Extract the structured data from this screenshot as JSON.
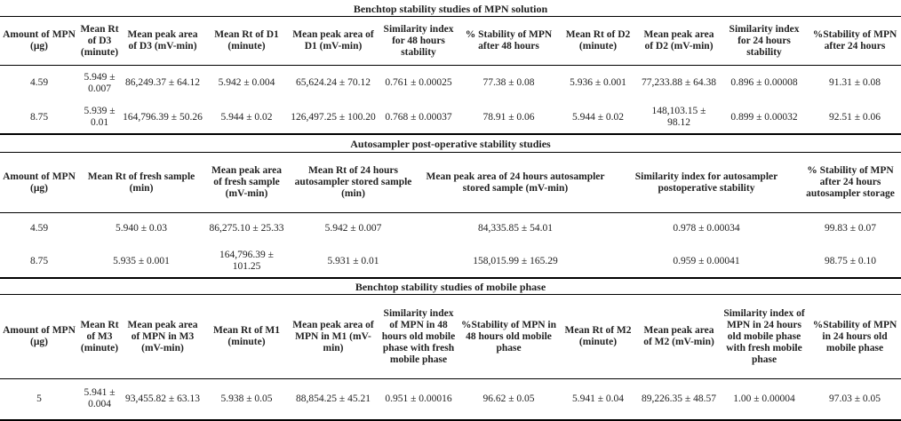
{
  "tables": [
    {
      "title": "Benchtop stability studies of MPN solution",
      "headers": [
        "Amount of MPN (μg)",
        "Mean Rt of D3 (minute)",
        "Mean peak area of D3 (mV-min)",
        "Mean Rt of D1 (minute)",
        "Mean peak area of D1 (mV-min)",
        "Similarity index for 48 hours stability",
        "% Stability of MPN after 48 hours",
        "Mean Rt of D2 (minute)",
        "Mean peak area of D2 (mV-min)",
        "Similarity index for 24 hours stability",
        "%Stability of MPN after 24 hours"
      ],
      "rows": [
        [
          "4.59",
          "5.949 ± 0.007",
          "86,249.37 ± 64.12",
          "5.942 ± 0.004",
          "65,624.24 ± 70.12",
          "0.761 ± 0.00025",
          "77.38 ± 0.08",
          "5.936 ± 0.001",
          "77,233.88 ± 64.38",
          "0.896 ± 0.00008",
          "91.31 ± 0.08"
        ],
        [
          "8.75",
          "5.939 ± 0.01",
          "164,796.39 ± 50.26",
          "5.944 ± 0.02",
          "126,497.25 ± 100.20",
          "0.768 ± 0.00037",
          "78.91 ± 0.06",
          "5.944 ± 0.02",
          "148,103.15 ± 98.12",
          "0.899 ± 0.00032",
          "92.51 ± 0.06"
        ]
      ]
    },
    {
      "title": "Autosampler post-operative stability studies",
      "headers": [
        "Amount of MPN (μg)",
        "Mean Rt of fresh sample (min)",
        "Mean peak area of fresh sample (mV-min)",
        "Mean Rt of 24 hours autosampler stored sample (min)",
        "Mean peak area of 24 hours autosampler stored sample (mV-min)",
        "Similarity index for autosampler postoperative stability",
        "% Stability of MPN after 24 hours autosampler storage"
      ],
      "rows": [
        [
          "4.59",
          "5.940 ± 0.03",
          "86,275.10 ± 25.33",
          "5.942 ± 0.007",
          "84,335.85 ± 54.01",
          "0.978 ± 0.00034",
          "99.83 ± 0.07"
        ],
        [
          "8.75",
          "5.935 ± 0.001",
          "164,796.39 ± 101.25",
          "5.931 ± 0.01",
          "158,015.99 ± 165.29",
          "0.959 ± 0.00041",
          "98.75 ± 0.10"
        ]
      ]
    },
    {
      "title": "Benchtop stability studies of mobile phase",
      "headers": [
        "Amount of MPN (μg)",
        "Mean Rt of M3 (minute)",
        "Mean peak area of MPN in M3 (mV-min)",
        "Mean Rt of M1 (minute)",
        "Mean peak area of MPN in M1 (mV-min)",
        "Similarity index of MPN in 48 hours old mobile phase with fresh mobile phase",
        "%Stability of MPN in 48 hours old mobile phase",
        "Mean Rt of M2 (minute)",
        "Mean peak area of M2 (mV-min)",
        "Similarity index of MPN in 24 hours old mobile phase with fresh mobile phase",
        "%Stability of MPN in 24 hours old mobile phase"
      ],
      "rows": [
        [
          "5",
          "5.941 ± 0.004",
          "93,455.82 ± 63.13",
          "5.938 ± 0.05",
          "88,854.25 ± 45.21",
          "0.951 ± 0.00016",
          "96.62 ± 0.05",
          "5.941 ± 0.04",
          "89,226.35 ± 48.57",
          "1.00 ± 0.00004",
          "97.03 ± 0.05"
        ]
      ]
    }
  ]
}
